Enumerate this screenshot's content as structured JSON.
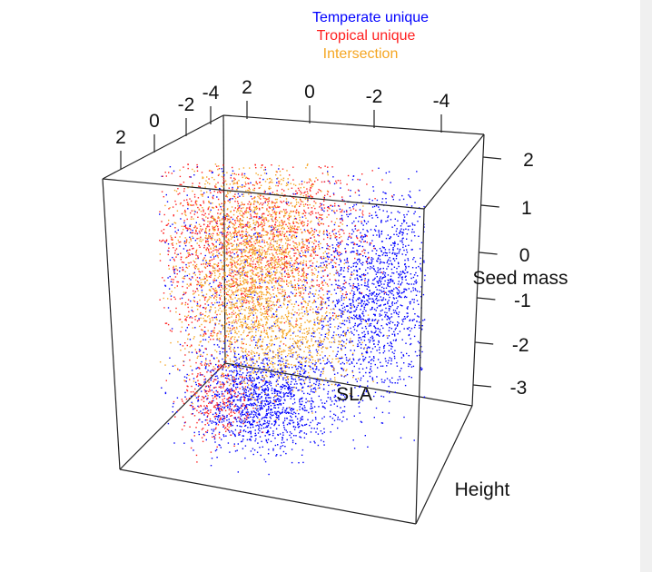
{
  "chart_data": {
    "type": "scatter",
    "dimensions": 3,
    "axes": {
      "x": {
        "label": "SLA",
        "ticks": [
          "2",
          "0",
          "-2",
          "-4"
        ]
      },
      "y": {
        "label": "Height",
        "ticks": [
          "2",
          "0",
          "-2",
          "-4"
        ]
      },
      "z": {
        "label": "Seed mass",
        "ticks": [
          "2",
          "1",
          "0",
          "-1",
          "-2",
          "-3"
        ]
      }
    },
    "series": [
      {
        "name": "Temperate unique",
        "color": "#0000ff"
      },
      {
        "name": "Tropical unique",
        "color": "#ff2020"
      },
      {
        "name": "Intersection",
        "color": "#f5a623"
      }
    ],
    "legend_position": "top-center",
    "grid": false
  }
}
